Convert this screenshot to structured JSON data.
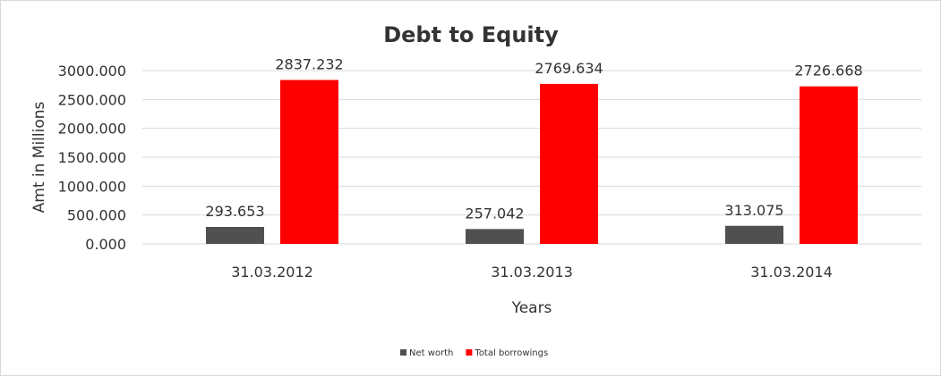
{
  "chart_data": {
    "type": "bar",
    "title": "Debt to Equity",
    "xlabel": "Years",
    "ylabel": "Amt in Millions",
    "categories": [
      "31.03.2012",
      "31.03.2013",
      "31.03.2014"
    ],
    "series": [
      {
        "name": "Net worth",
        "color": "#505050",
        "values": [
          293.653,
          257.042,
          313.075
        ],
        "labels": [
          "293.653",
          "257.042",
          "313.075"
        ]
      },
      {
        "name": "Total borrowings",
        "color": "#ff0000",
        "values": [
          2837.232,
          2769.634,
          2726.668
        ],
        "labels": [
          "2837.232",
          "2769.634",
          "2726.668"
        ]
      }
    ],
    "ylim": [
      0,
      3000
    ],
    "yticks": [
      "0.000",
      "500.000",
      "1000.000",
      "1500.000",
      "2000.000",
      "2500.000",
      "3000.000"
    ],
    "grid": true,
    "legend": "bottom"
  }
}
